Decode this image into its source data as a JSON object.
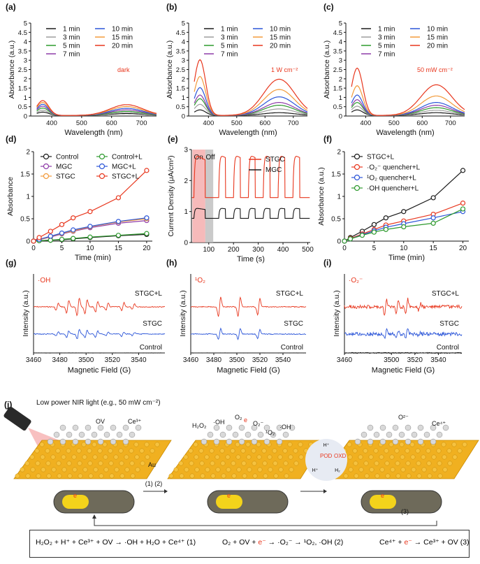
{
  "colors": {
    "t1": "#1a1a1a",
    "t3": "#9e9e9e",
    "t5": "#2e9a2e",
    "t7": "#8e3aa8",
    "t10": "#2b55d8",
    "t15": "#f29a3a",
    "t20": "#e8371e",
    "red": "#e8371e",
    "blue": "#2b55d8",
    "black": "#1a1a1a",
    "green": "#2e9a2e",
    "purple": "#8e3aa8",
    "orange": "#f29a3a"
  },
  "panels": {
    "a": {
      "label": "(a)",
      "note": "dark"
    },
    "b": {
      "label": "(b)",
      "note": "1 W cm⁻²"
    },
    "c": {
      "label": "(c)",
      "note": "50 mW cm⁻²"
    },
    "d": {
      "label": "(d)"
    },
    "e": {
      "label": "(e)",
      "on": "On",
      "off": "Off"
    },
    "f": {
      "label": "(f)"
    },
    "g": {
      "label": "(g)",
      "species": "·OH"
    },
    "h": {
      "label": "(h)",
      "species": "¹O₂"
    },
    "i": {
      "label": "(i)",
      "species": "·O₂⁻"
    },
    "j": {
      "label": "(j)"
    }
  },
  "chart_data": [
    {
      "panel": "a",
      "type": "line",
      "xlabel": "Wavelength (nm)",
      "ylabel": "Absorbance (a.u.)",
      "xlim": [
        330,
        750
      ],
      "ylim": [
        0,
        5
      ],
      "xticks": [
        400,
        500,
        600,
        700
      ],
      "yticks": [
        0,
        0.5,
        1,
        1.5,
        2,
        2.5,
        3,
        3.5,
        4,
        4.5,
        5
      ],
      "series": [
        {
          "name": "1 min",
          "peak1": 0.18,
          "peak2": 0.1
        },
        {
          "name": "3 min",
          "peak1": 0.28,
          "peak2": 0.15
        },
        {
          "name": "5 min",
          "peak1": 0.4,
          "peak2": 0.22
        },
        {
          "name": "7 min",
          "peak1": 0.5,
          "peak2": 0.3
        },
        {
          "name": "10 min",
          "peak1": 0.6,
          "peak2": 0.38
        },
        {
          "name": "15 min",
          "peak1": 0.7,
          "peak2": 0.48
        },
        {
          "name": "20 min",
          "peak1": 0.8,
          "peak2": 0.58
        }
      ]
    },
    {
      "panel": "b",
      "type": "line",
      "xlabel": "Wavelength (nm)",
      "ylabel": "Absorbance (a.u.)",
      "xlim": [
        330,
        750
      ],
      "ylim": [
        0,
        5
      ],
      "xticks": [
        400,
        500,
        600,
        700
      ],
      "yticks": [
        0,
        0.5,
        1,
        1.5,
        2,
        2.5,
        3,
        3.5,
        4,
        4.5,
        5
      ],
      "series": [
        {
          "name": "1 min",
          "peak1": 0.3,
          "peak2": 0.15
        },
        {
          "name": "3 min",
          "peak1": 0.6,
          "peak2": 0.35
        },
        {
          "name": "5 min",
          "peak1": 0.9,
          "peak2": 0.55
        },
        {
          "name": "7 min",
          "peak1": 1.1,
          "peak2": 0.7
        },
        {
          "name": "10 min",
          "peak1": 1.5,
          "peak2": 1.0
        },
        {
          "name": "15 min",
          "peak1": 2.1,
          "peak2": 1.4
        },
        {
          "name": "20 min",
          "peak1": 3.0,
          "peak2": 1.95
        }
      ]
    },
    {
      "panel": "c",
      "type": "line",
      "xlabel": "Wavelength (nm)",
      "ylabel": "Absorbance (a.u.)",
      "xlim": [
        330,
        750
      ],
      "ylim": [
        0,
        5
      ],
      "xticks": [
        400,
        500,
        600,
        700
      ],
      "yticks": [
        0,
        0.5,
        1,
        1.5,
        2,
        2.5,
        3,
        3.5,
        4,
        4.5,
        5
      ],
      "series": [
        {
          "name": "1 min",
          "peak1": 0.3,
          "peak2": 0.15
        },
        {
          "name": "3 min",
          "peak1": 0.5,
          "peak2": 0.28
        },
        {
          "name": "5 min",
          "peak1": 0.7,
          "peak2": 0.42
        },
        {
          "name": "7 min",
          "peak1": 0.85,
          "peak2": 0.55
        },
        {
          "name": "10 min",
          "peak1": 1.1,
          "peak2": 0.7
        },
        {
          "name": "15 min",
          "peak1": 1.6,
          "peak2": 1.05
        },
        {
          "name": "20 min",
          "peak1": 2.55,
          "peak2": 1.65
        }
      ]
    },
    {
      "panel": "d",
      "type": "line",
      "xlabel": "Time (min)",
      "ylabel": "Absorbance",
      "xlim": [
        0,
        21
      ],
      "ylim": [
        0,
        2
      ],
      "xticks": [
        0,
        5,
        10,
        15,
        20
      ],
      "yticks": [
        0,
        0.5,
        1,
        1.5,
        2
      ],
      "x": [
        0,
        1,
        3,
        5,
        7,
        10,
        15,
        20
      ],
      "series": [
        {
          "name": "Control",
          "values": [
            0,
            0.01,
            0.02,
            0.03,
            0.05,
            0.08,
            0.12,
            0.15
          ]
        },
        {
          "name": "MGC",
          "values": [
            0,
            0.03,
            0.09,
            0.16,
            0.22,
            0.3,
            0.4,
            0.46
          ]
        },
        {
          "name": "STGC",
          "values": [
            0,
            0.03,
            0.1,
            0.17,
            0.23,
            0.32,
            0.43,
            0.5
          ]
        },
        {
          "name": "Control+L",
          "values": [
            0,
            0.01,
            0.02,
            0.04,
            0.06,
            0.09,
            0.13,
            0.17
          ]
        },
        {
          "name": "MGC+L",
          "values": [
            0,
            0.04,
            0.11,
            0.18,
            0.25,
            0.33,
            0.44,
            0.52
          ]
        },
        {
          "name": "STGC+L",
          "values": [
            0,
            0.08,
            0.22,
            0.37,
            0.52,
            0.66,
            0.97,
            1.58
          ]
        }
      ]
    },
    {
      "panel": "e",
      "type": "line",
      "xlabel": "Time (s)",
      "ylabel": "Current Density (μA/cm²)",
      "xlim": [
        30,
        510
      ],
      "ylim": [
        0,
        3
      ],
      "xticks": [
        100,
        200,
        300,
        400,
        500
      ],
      "yticks": [
        0,
        1,
        2,
        3
      ],
      "series": [
        {
          "name": "STGC",
          "off_level": 1.45,
          "on_level": 2.85
        },
        {
          "name": "MGC",
          "off_level": 0.78,
          "on_level": 1.12
        }
      ]
    },
    {
      "panel": "f",
      "type": "line",
      "xlabel": "Time (min)",
      "ylabel": "Absorbance (a.u.)",
      "xlim": [
        0,
        21
      ],
      "ylim": [
        0,
        2
      ],
      "xticks": [
        0,
        5,
        10,
        15,
        20
      ],
      "yticks": [
        0,
        0.5,
        1,
        1.5,
        2
      ],
      "x": [
        0,
        1,
        3,
        5,
        7,
        10,
        15,
        20
      ],
      "series": [
        {
          "name": "STGC+L",
          "values": [
            0,
            0.08,
            0.22,
            0.37,
            0.52,
            0.66,
            0.97,
            1.58
          ]
        },
        {
          "name": "·O₂⁻ quencher+L",
          "values": [
            0,
            0.06,
            0.16,
            0.26,
            0.36,
            0.45,
            0.6,
            0.85
          ]
        },
        {
          "name": "¹O₂ quencher+L",
          "values": [
            0,
            0.05,
            0.14,
            0.23,
            0.31,
            0.39,
            0.52,
            0.66
          ]
        },
        {
          "name": "·OH quencher+L",
          "values": [
            0,
            0.05,
            0.13,
            0.2,
            0.26,
            0.32,
            0.4,
            0.72
          ]
        }
      ]
    },
    {
      "panel": "g",
      "type": "line",
      "xlabel": "Magnetic Field (G)",
      "ylabel": "Intensity (a.u.)",
      "xlim": [
        3460,
        3560
      ],
      "xticks": [
        3460,
        3480,
        3500,
        3520,
        3540
      ],
      "series": [
        {
          "name": "STGC+L"
        },
        {
          "name": "STGC"
        },
        {
          "name": "Control"
        }
      ]
    },
    {
      "panel": "h",
      "type": "line",
      "xlabel": "Magnetic Field (G)",
      "ylabel": "Intensity (a.u.)",
      "xlim": [
        3460,
        3560
      ],
      "xticks": [
        3460,
        3480,
        3500,
        3520,
        3540
      ],
      "series": [
        {
          "name": "STGC+L"
        },
        {
          "name": "STGC"
        },
        {
          "name": "Control"
        }
      ]
    },
    {
      "panel": "i",
      "type": "line",
      "xlabel": "Magnetic Field (G)",
      "ylabel": "Intensity (a.u.)",
      "xlim": [
        3460,
        3560
      ],
      "xticks": [
        3460,
        3500,
        3520,
        3540
      ],
      "series": [
        {
          "name": "STGC+L"
        },
        {
          "name": "STGC"
        },
        {
          "name": "Control"
        }
      ]
    }
  ],
  "scheme": {
    "light_label": "Low power NIR light (e.g., 50 mW cm⁻²)",
    "ov": "OV",
    "ce3": "Ce³⁺",
    "ce4": "Ce⁴⁺",
    "au": "Au",
    "h2o2": "H₂O₂",
    "oh": "·OH",
    "o2": "O₂",
    "o2m": "O₂⁻",
    "so2": "¹O₂",
    "oh2": "·OH",
    "o2top": "O²⁻",
    "e": "e",
    "step12": "(1) (2)",
    "step3": "(3)",
    "pod": "POD",
    "oxd": "OXD",
    "hplus": "H⁺",
    "h2": "H₂"
  },
  "equations": {
    "eq1": "H₂O₂ + H⁺ + Ce³⁺ + OV → ·OH + H₂O + Ce⁴⁺  (1)",
    "eq2a": "O₂ + OV + ",
    "eq2e": "e⁻",
    "eq2b": " → ·O₂⁻ → ¹O₂, ·OH  (2)",
    "eq3a": "Ce⁴⁺ + ",
    "eq3e": "e⁻",
    "eq3b": " → Ce³⁺ + OV  (3)"
  }
}
